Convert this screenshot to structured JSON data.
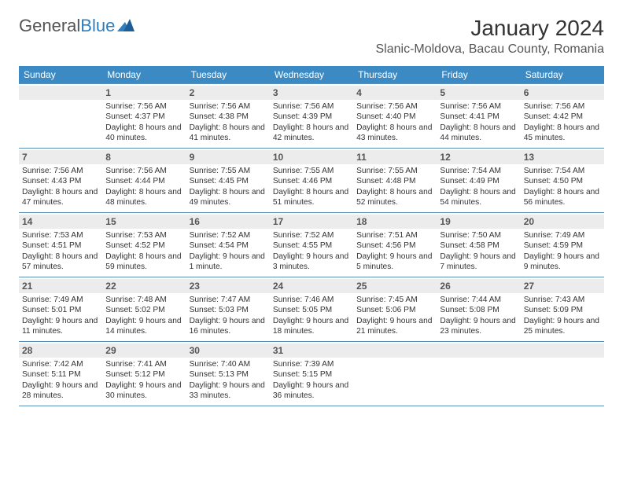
{
  "logo": {
    "part1": "General",
    "part2": "Blue"
  },
  "title": "January 2024",
  "location": "Slanic-Moldova, Bacau County, Romania",
  "colors": {
    "header_bg": "#3b8ac4",
    "header_fg": "#ffffff",
    "daynum_bg": "#ececec",
    "cell_border": "#5c8fb5",
    "logo_gray": "#555555",
    "logo_blue": "#2f7fbf"
  },
  "day_headers": [
    "Sunday",
    "Monday",
    "Tuesday",
    "Wednesday",
    "Thursday",
    "Friday",
    "Saturday"
  ],
  "weeks": [
    [
      {
        "num": "",
        "sunrise": "",
        "sunset": "",
        "daylight": ""
      },
      {
        "num": "1",
        "sunrise": "Sunrise: 7:56 AM",
        "sunset": "Sunset: 4:37 PM",
        "daylight": "Daylight: 8 hours and 40 minutes."
      },
      {
        "num": "2",
        "sunrise": "Sunrise: 7:56 AM",
        "sunset": "Sunset: 4:38 PM",
        "daylight": "Daylight: 8 hours and 41 minutes."
      },
      {
        "num": "3",
        "sunrise": "Sunrise: 7:56 AM",
        "sunset": "Sunset: 4:39 PM",
        "daylight": "Daylight: 8 hours and 42 minutes."
      },
      {
        "num": "4",
        "sunrise": "Sunrise: 7:56 AM",
        "sunset": "Sunset: 4:40 PM",
        "daylight": "Daylight: 8 hours and 43 minutes."
      },
      {
        "num": "5",
        "sunrise": "Sunrise: 7:56 AM",
        "sunset": "Sunset: 4:41 PM",
        "daylight": "Daylight: 8 hours and 44 minutes."
      },
      {
        "num": "6",
        "sunrise": "Sunrise: 7:56 AM",
        "sunset": "Sunset: 4:42 PM",
        "daylight": "Daylight: 8 hours and 45 minutes."
      }
    ],
    [
      {
        "num": "7",
        "sunrise": "Sunrise: 7:56 AM",
        "sunset": "Sunset: 4:43 PM",
        "daylight": "Daylight: 8 hours and 47 minutes."
      },
      {
        "num": "8",
        "sunrise": "Sunrise: 7:56 AM",
        "sunset": "Sunset: 4:44 PM",
        "daylight": "Daylight: 8 hours and 48 minutes."
      },
      {
        "num": "9",
        "sunrise": "Sunrise: 7:55 AM",
        "sunset": "Sunset: 4:45 PM",
        "daylight": "Daylight: 8 hours and 49 minutes."
      },
      {
        "num": "10",
        "sunrise": "Sunrise: 7:55 AM",
        "sunset": "Sunset: 4:46 PM",
        "daylight": "Daylight: 8 hours and 51 minutes."
      },
      {
        "num": "11",
        "sunrise": "Sunrise: 7:55 AM",
        "sunset": "Sunset: 4:48 PM",
        "daylight": "Daylight: 8 hours and 52 minutes."
      },
      {
        "num": "12",
        "sunrise": "Sunrise: 7:54 AM",
        "sunset": "Sunset: 4:49 PM",
        "daylight": "Daylight: 8 hours and 54 minutes."
      },
      {
        "num": "13",
        "sunrise": "Sunrise: 7:54 AM",
        "sunset": "Sunset: 4:50 PM",
        "daylight": "Daylight: 8 hours and 56 minutes."
      }
    ],
    [
      {
        "num": "14",
        "sunrise": "Sunrise: 7:53 AM",
        "sunset": "Sunset: 4:51 PM",
        "daylight": "Daylight: 8 hours and 57 minutes."
      },
      {
        "num": "15",
        "sunrise": "Sunrise: 7:53 AM",
        "sunset": "Sunset: 4:52 PM",
        "daylight": "Daylight: 8 hours and 59 minutes."
      },
      {
        "num": "16",
        "sunrise": "Sunrise: 7:52 AM",
        "sunset": "Sunset: 4:54 PM",
        "daylight": "Daylight: 9 hours and 1 minute."
      },
      {
        "num": "17",
        "sunrise": "Sunrise: 7:52 AM",
        "sunset": "Sunset: 4:55 PM",
        "daylight": "Daylight: 9 hours and 3 minutes."
      },
      {
        "num": "18",
        "sunrise": "Sunrise: 7:51 AM",
        "sunset": "Sunset: 4:56 PM",
        "daylight": "Daylight: 9 hours and 5 minutes."
      },
      {
        "num": "19",
        "sunrise": "Sunrise: 7:50 AM",
        "sunset": "Sunset: 4:58 PM",
        "daylight": "Daylight: 9 hours and 7 minutes."
      },
      {
        "num": "20",
        "sunrise": "Sunrise: 7:49 AM",
        "sunset": "Sunset: 4:59 PM",
        "daylight": "Daylight: 9 hours and 9 minutes."
      }
    ],
    [
      {
        "num": "21",
        "sunrise": "Sunrise: 7:49 AM",
        "sunset": "Sunset: 5:01 PM",
        "daylight": "Daylight: 9 hours and 11 minutes."
      },
      {
        "num": "22",
        "sunrise": "Sunrise: 7:48 AM",
        "sunset": "Sunset: 5:02 PM",
        "daylight": "Daylight: 9 hours and 14 minutes."
      },
      {
        "num": "23",
        "sunrise": "Sunrise: 7:47 AM",
        "sunset": "Sunset: 5:03 PM",
        "daylight": "Daylight: 9 hours and 16 minutes."
      },
      {
        "num": "24",
        "sunrise": "Sunrise: 7:46 AM",
        "sunset": "Sunset: 5:05 PM",
        "daylight": "Daylight: 9 hours and 18 minutes."
      },
      {
        "num": "25",
        "sunrise": "Sunrise: 7:45 AM",
        "sunset": "Sunset: 5:06 PM",
        "daylight": "Daylight: 9 hours and 21 minutes."
      },
      {
        "num": "26",
        "sunrise": "Sunrise: 7:44 AM",
        "sunset": "Sunset: 5:08 PM",
        "daylight": "Daylight: 9 hours and 23 minutes."
      },
      {
        "num": "27",
        "sunrise": "Sunrise: 7:43 AM",
        "sunset": "Sunset: 5:09 PM",
        "daylight": "Daylight: 9 hours and 25 minutes."
      }
    ],
    [
      {
        "num": "28",
        "sunrise": "Sunrise: 7:42 AM",
        "sunset": "Sunset: 5:11 PM",
        "daylight": "Daylight: 9 hours and 28 minutes."
      },
      {
        "num": "29",
        "sunrise": "Sunrise: 7:41 AM",
        "sunset": "Sunset: 5:12 PM",
        "daylight": "Daylight: 9 hours and 30 minutes."
      },
      {
        "num": "30",
        "sunrise": "Sunrise: 7:40 AM",
        "sunset": "Sunset: 5:13 PM",
        "daylight": "Daylight: 9 hours and 33 minutes."
      },
      {
        "num": "31",
        "sunrise": "Sunrise: 7:39 AM",
        "sunset": "Sunset: 5:15 PM",
        "daylight": "Daylight: 9 hours and 36 minutes."
      },
      {
        "num": "",
        "sunrise": "",
        "sunset": "",
        "daylight": ""
      },
      {
        "num": "",
        "sunrise": "",
        "sunset": "",
        "daylight": ""
      },
      {
        "num": "",
        "sunrise": "",
        "sunset": "",
        "daylight": ""
      }
    ]
  ]
}
